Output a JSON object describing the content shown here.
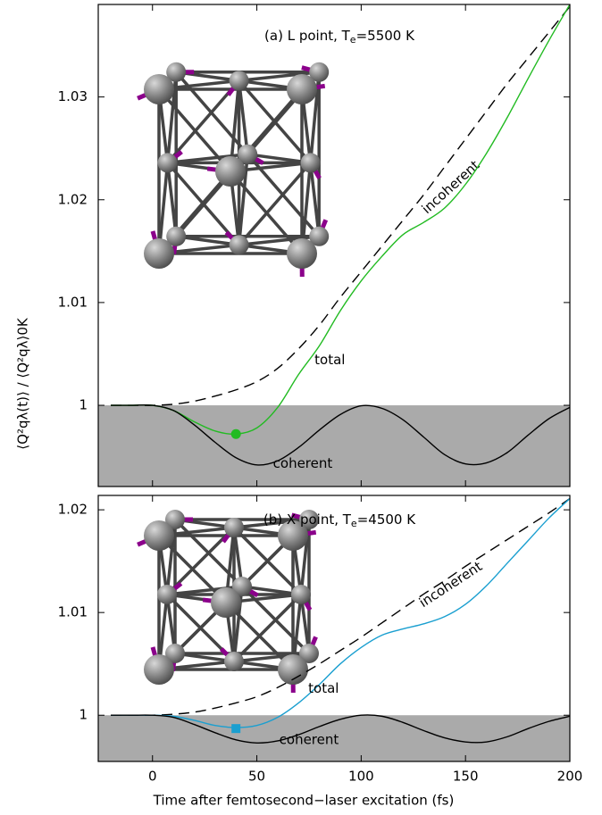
{
  "chart_data": [
    {
      "type": "line",
      "title": [
        "(a) L point, T",
        "e",
        "=5500 K"
      ],
      "x": [
        -20,
        -10,
        0,
        10,
        20,
        30,
        40,
        50,
        60,
        70,
        80,
        90,
        100,
        110,
        120,
        130,
        140,
        150,
        160,
        170,
        180,
        190,
        200
      ],
      "series": [
        {
          "name": "incoherent",
          "color": "#000000",
          "dashed": true,
          "values": [
            1,
            1,
            1,
            1.0001,
            1.0004,
            1.0009,
            1.0015,
            1.0023,
            1.0036,
            1.0055,
            1.0078,
            1.0105,
            1.013,
            1.0155,
            1.018,
            1.0205,
            1.0232,
            1.0259,
            1.0286,
            1.0313,
            1.0338,
            1.0363,
            1.0388
          ]
        },
        {
          "name": "total",
          "color": "#22bb22",
          "dashed": false,
          "values": [
            1,
            1,
            1,
            0.9995,
            0.9984,
            0.9975,
            0.9972,
            0.9978,
            0.9998,
            1.003,
            1.0058,
            1.0092,
            1.0121,
            1.0145,
            1.0166,
            1.0178,
            1.0192,
            1.0215,
            1.0245,
            1.028,
            1.0318,
            1.0355,
            1.039
          ]
        },
        {
          "name": "coherent",
          "color": "#000000",
          "dashed": false,
          "values": [
            1,
            1,
            1,
            0.9995,
            0.9981,
            0.9964,
            0.9949,
            0.9942,
            0.9946,
            0.9959,
            0.9976,
            0.9991,
            0.99995,
            0.9997,
            0.9986,
            0.9969,
            0.9952,
            0.9943,
            0.9944,
            0.9954,
            0.9971,
            0.9987,
            0.9998
          ]
        }
      ],
      "marker": {
        "x": 40,
        "y": 0.9972,
        "shape": "circle",
        "color": "#22bb22"
      },
      "shade_below": 1,
      "shade_color": "#aaaaaa",
      "xlim": [
        -26,
        200
      ],
      "xticks": [
        0,
        50,
        100,
        150,
        200
      ],
      "ylim": [
        0.9921,
        1.039
      ],
      "yticks": [
        1,
        1.01,
        1.02,
        1.03
      ]
    },
    {
      "type": "line",
      "title": [
        "(b) X point, T",
        "e",
        "=4500 K"
      ],
      "x": [
        -20,
        -10,
        0,
        10,
        20,
        30,
        40,
        50,
        60,
        70,
        80,
        90,
        100,
        110,
        120,
        130,
        140,
        150,
        160,
        170,
        180,
        190,
        200
      ],
      "series": [
        {
          "name": "incoherent",
          "color": "#000000",
          "dashed": true,
          "values": [
            1,
            1,
            1,
            1.0001,
            1.0003,
            1.0007,
            1.0012,
            1.0018,
            1.0027,
            1.0038,
            1.005,
            1.0063,
            1.0076,
            1.009,
            1.0104,
            1.0118,
            1.0131,
            1.0145,
            1.0158,
            1.0171,
            1.0184,
            1.0197,
            1.0211
          ]
        },
        {
          "name": "total",
          "color": "#1a9fd0",
          "dashed": false,
          "values": [
            1,
            1,
            1,
            0.9999,
            0.9995,
            0.999,
            0.9988,
            0.999,
            0.9998,
            1.0012,
            1.003,
            1.005,
            1.0066,
            1.0078,
            1.0084,
            1.0089,
            1.0096,
            1.0108,
            1.0126,
            1.0148,
            1.017,
            1.0192,
            1.0211
          ]
        },
        {
          "name": "coherent",
          "color": "#000000",
          "dashed": false,
          "values": [
            1,
            1,
            1,
            0.9998,
            0.9991,
            0.9983,
            0.9976,
            0.9973,
            0.9975,
            0.9981,
            0.9989,
            0.9996,
            1,
            0.9999,
            0.9993,
            0.9985,
            0.9978,
            0.9974,
            0.9974,
            0.9979,
            0.9987,
            0.9994,
            0.9999
          ]
        }
      ],
      "marker": {
        "x": 40,
        "y": 0.9987,
        "shape": "square",
        "color": "#1a9fd0"
      },
      "shade_below": 1,
      "shade_color": "#aaaaaa",
      "xlim": [
        -26,
        200
      ],
      "xticks": [
        0,
        50,
        100,
        150,
        200
      ],
      "ylim": [
        0.9955,
        1.0214
      ],
      "yticks": [
        1,
        1.01,
        1.02
      ],
      "xlabel": "Time after femtosecond−laser excitation (fs)",
      "ylabel": "⟨Q²qλ(t)⟩ / ⟨Q²qλ⟩0K"
    }
  ]
}
